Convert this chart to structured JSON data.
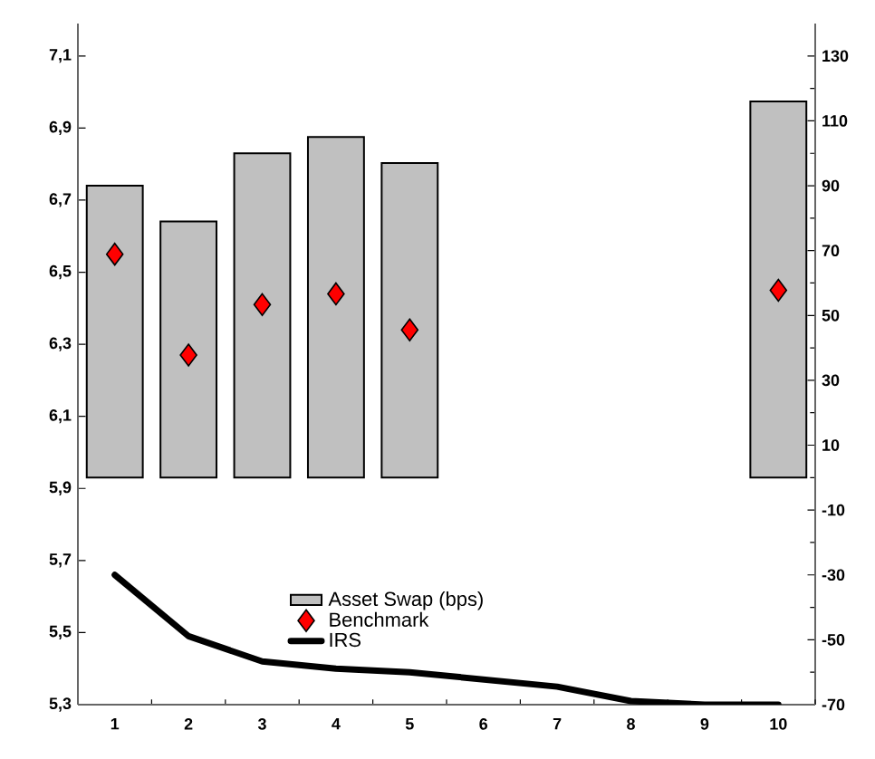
{
  "chart_data": {
    "type": "bar",
    "categories": [
      "1",
      "2",
      "3",
      "4",
      "5",
      "6",
      "7",
      "8",
      "9",
      "10"
    ],
    "series": [
      {
        "name": "Asset Swap (bps)",
        "axis": "y2",
        "color": "#c0c0c0",
        "values": [
          90,
          79,
          100,
          105,
          97,
          null,
          null,
          null,
          null,
          116
        ]
      },
      {
        "name": "Benchmark",
        "type": "scatter",
        "marker": "diamond",
        "color": "#ff0000",
        "values": [
          6.55,
          6.27,
          6.41,
          6.44,
          6.34,
          null,
          null,
          null,
          null,
          6.45
        ]
      },
      {
        "name": "IRS",
        "type": "line",
        "color": "#000000",
        "values": [
          5.66,
          5.49,
          5.42,
          5.4,
          5.39,
          5.37,
          5.35,
          5.31,
          5.3,
          5.3
        ]
      }
    ],
    "ylim": [
      5.3,
      7.19
    ],
    "yticks": [
      {
        "value": 5.3,
        "label": "5,3"
      },
      {
        "value": 5.5,
        "label": "5,5"
      },
      {
        "value": 5.7,
        "label": "5,7"
      },
      {
        "value": 5.9,
        "label": "5,9"
      },
      {
        "value": 6.1,
        "label": "6,1"
      },
      {
        "value": 6.3,
        "label": "6,3"
      },
      {
        "value": 6.5,
        "label": "6,5"
      },
      {
        "value": 6.7,
        "label": "6,7"
      },
      {
        "value": 6.9,
        "label": "6,9"
      },
      {
        "value": 7.1,
        "label": "7,1"
      }
    ],
    "y2lim": [
      -70,
      140
    ],
    "y2ticks": [
      -70,
      -50,
      -30,
      -10,
      10,
      30,
      50,
      70,
      90,
      110,
      130
    ],
    "legend": "bottom"
  }
}
